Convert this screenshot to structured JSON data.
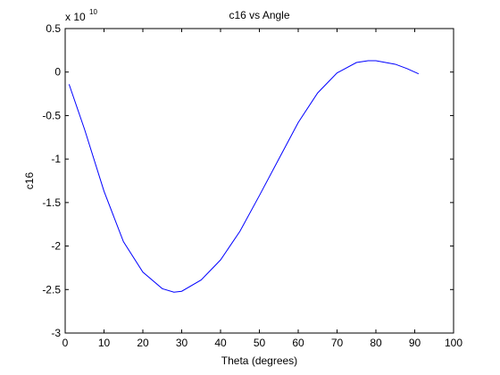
{
  "chart_data": {
    "type": "line",
    "title": "c16 vs Angle",
    "xlabel": "Theta (degrees)",
    "ylabel": "c16",
    "y_multiplier": {
      "prefix": "x 10",
      "exponent": "10"
    },
    "xlim": [
      0,
      100
    ],
    "ylim": [
      -3,
      0.5
    ],
    "x_ticks": [
      0,
      10,
      20,
      30,
      40,
      50,
      60,
      70,
      80,
      90,
      100
    ],
    "y_ticks": [
      0.5,
      0,
      -0.5,
      -1,
      -1.5,
      -2,
      -2.5,
      -3
    ],
    "x_tick_labels": [
      "0",
      "10",
      "20",
      "30",
      "40",
      "50",
      "60",
      "70",
      "80",
      "90",
      "100"
    ],
    "y_tick_labels": [
      "0.5",
      "0",
      "-0.5",
      "-1",
      "-1.5",
      "-2",
      "-2.5",
      "-3"
    ],
    "grid": false,
    "line_color": "#0000ff",
    "series": [
      {
        "x": [
          1,
          5,
          10,
          15,
          20,
          25,
          28,
          30,
          35,
          40,
          45,
          50,
          55,
          60,
          65,
          70,
          75,
          78,
          80,
          85,
          88,
          91
        ],
        "y": [
          -0.14,
          -0.66,
          -1.37,
          -1.95,
          -2.3,
          -2.49,
          -2.53,
          -2.52,
          -2.39,
          -2.16,
          -1.83,
          -1.42,
          -1.0,
          -0.58,
          -0.24,
          -0.01,
          0.11,
          0.13,
          0.13,
          0.09,
          0.04,
          -0.02
        ]
      }
    ]
  }
}
